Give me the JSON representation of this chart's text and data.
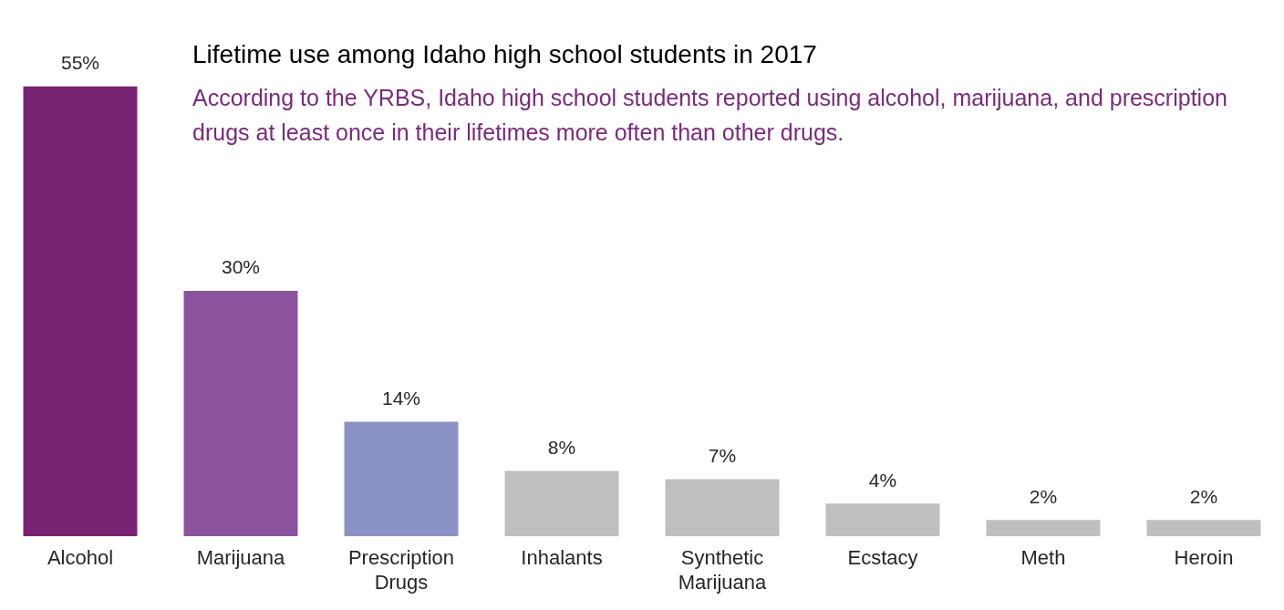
{
  "chart_data": {
    "type": "bar",
    "title": "Lifetime use among Idaho high school students in 2017",
    "subtitle": "According to the YRBS, Idaho high school students reported using alcohol, marijuana, and prescription drugs at least once in their lifetimes more often than other drugs.",
    "categories": [
      "Alcohol",
      "Marijuana",
      "Prescription Drugs",
      "Inhalants",
      "Synthetic Marijuana",
      "Ecstacy",
      "Meth",
      "Heroin"
    ],
    "values": [
      55,
      30,
      14,
      8,
      7,
      4,
      2,
      2
    ],
    "value_labels": [
      "55%",
      "30%",
      "14%",
      "8%",
      "7%",
      "4%",
      "2%",
      "2%"
    ],
    "colors": [
      "#772372",
      "#8b539d",
      "#8b92c5",
      "#bfbfbf",
      "#bfbfbf",
      "#bfbfbf",
      "#bfbfbf",
      "#bfbfbf"
    ],
    "grid": false,
    "legend": false,
    "tick_labels": "x"
  }
}
